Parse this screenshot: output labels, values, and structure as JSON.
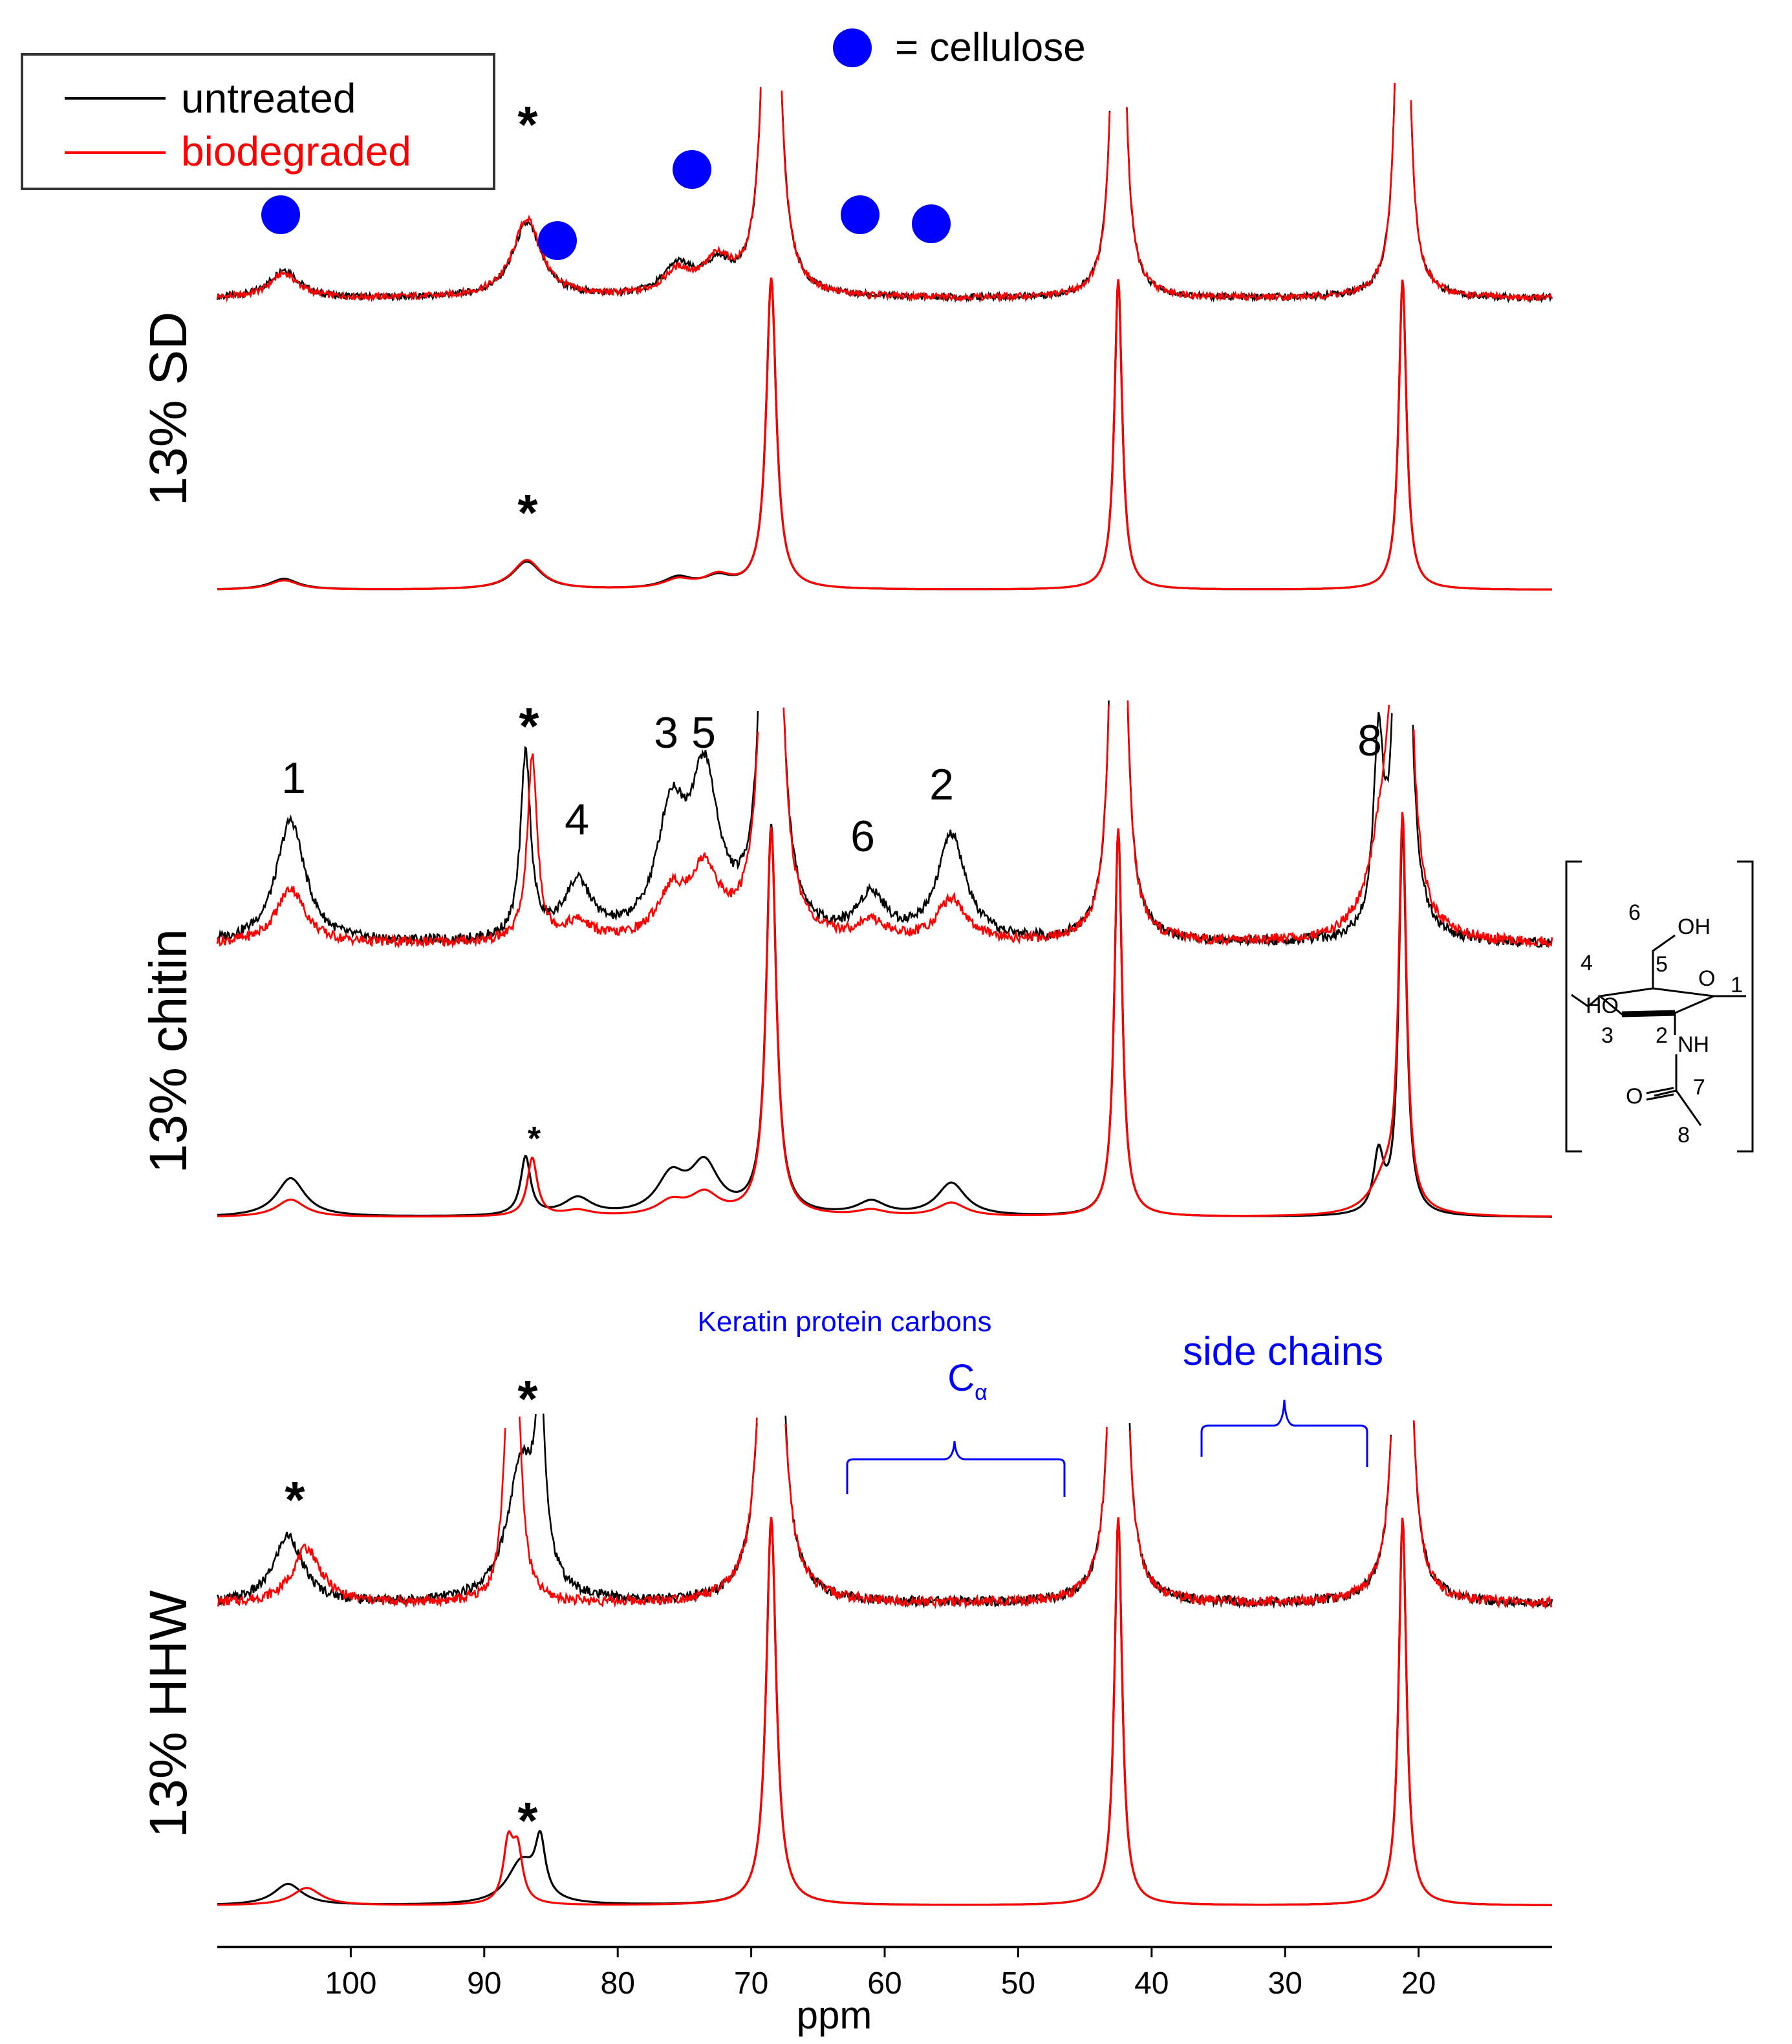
{
  "chart_data": {
    "type": "line",
    "title": "",
    "xlabel": "ppm",
    "ylabel": "",
    "xlim": [
      110,
      10
    ],
    "x_ticks": [
      100,
      90,
      80,
      70,
      60,
      50,
      40,
      30,
      20
    ],
    "grid": false,
    "legend": {
      "placement": "top-left",
      "entries": [
        {
          "label": "untreated",
          "color": "#000000"
        },
        {
          "label": "biodegraded",
          "color": "#ff0000"
        }
      ]
    },
    "cellulose_legend": {
      "label": "= cellulose",
      "color": "#0000ff"
    },
    "panels": [
      {
        "name": "13% SD",
        "annotations": {
          "stars_ppm": [
            86.5,
            86.5
          ],
          "cellulose_markers_ppm": [
            105.5,
            85,
            75,
            62,
            56.5
          ]
        },
        "peaks": {
          "untreated": [
            [
              105,
              0.35
            ],
            [
              86.8,
              0.9
            ],
            [
              75.5,
              0.35
            ],
            [
              72.5,
              0.35
            ],
            [
              68.5,
              10
            ],
            [
              42.5,
              10
            ],
            [
              21.2,
              10
            ]
          ],
          "biodegraded": [
            [
              105,
              0.3
            ],
            [
              86.8,
              0.95
            ],
            [
              75.5,
              0.28
            ],
            [
              72.5,
              0.4
            ],
            [
              68.5,
              10
            ],
            [
              42.5,
              10
            ],
            [
              21.2,
              10
            ]
          ]
        }
      },
      {
        "name": "13% chitin",
        "carbon_labels": [
          {
            "label": "1",
            "ppm": 104.5
          },
          {
            "label": "4",
            "ppm": 83
          },
          {
            "label": "3",
            "ppm": 76
          },
          {
            "label": "5",
            "ppm": 73.5
          },
          {
            "label": "6",
            "ppm": 61
          },
          {
            "label": "2",
            "ppm": 55
          },
          {
            "label": "8",
            "ppm": 23
          }
        ],
        "annotations": {
          "stars_ppm": [
            86.5,
            86.5
          ]
        },
        "peaks": {
          "untreated": [
            [
              104.5,
              1.0
            ],
            [
              86.9,
              1.5
            ],
            [
              83,
              0.45
            ],
            [
              76,
              0.95
            ],
            [
              73.5,
              1.25
            ],
            [
              61,
              0.35
            ],
            [
              55,
              0.85
            ],
            [
              68.5,
              10
            ],
            [
              42.5,
              10
            ],
            [
              23,
              1.5
            ],
            [
              21.2,
              10
            ]
          ],
          "biodegraded": [
            [
              104.5,
              0.45
            ],
            [
              86.4,
              1.5
            ],
            [
              83,
              0.15
            ],
            [
              76,
              0.35
            ],
            [
              73.5,
              0.55
            ],
            [
              61,
              0.15
            ],
            [
              55,
              0.35
            ],
            [
              68.5,
              10
            ],
            [
              42.5,
              10
            ],
            [
              22.5,
              0.9
            ],
            [
              21.2,
              10
            ]
          ]
        },
        "structure_labels": {
          "carbons": [
            "1",
            "2",
            "3",
            "4",
            "5",
            "6",
            "7",
            "8"
          ],
          "groups": [
            "OH",
            "O",
            "HO",
            "NH",
            "O"
          ]
        }
      },
      {
        "name": "13% HHW",
        "annotations": {
          "stars_ppm": [
            104.5,
            87,
            87
          ],
          "keratin_label": "Keratin protein carbons",
          "c_alpha_label": "C",
          "c_alpha_subscript": "α",
          "side_chains_label": "side chains",
          "c_alpha_range_ppm": [
            63,
            47
          ],
          "side_chains_range_ppm": [
            36.5,
            24
          ]
        },
        "peaks": {
          "untreated": [
            [
              104.7,
              0.55
            ],
            [
              87.2,
              1.1
            ],
            [
              85.8,
              1.4
            ],
            [
              68.5,
              10
            ],
            [
              42.5,
              10
            ],
            [
              21.2,
              10
            ]
          ],
          "biodegraded": [
            [
              103.3,
              0.45
            ],
            [
              88.2,
              1.5
            ],
            [
              87.5,
              1.3
            ],
            [
              68.5,
              10
            ],
            [
              42.5,
              10
            ],
            [
              21.2,
              10
            ]
          ]
        }
      }
    ]
  }
}
